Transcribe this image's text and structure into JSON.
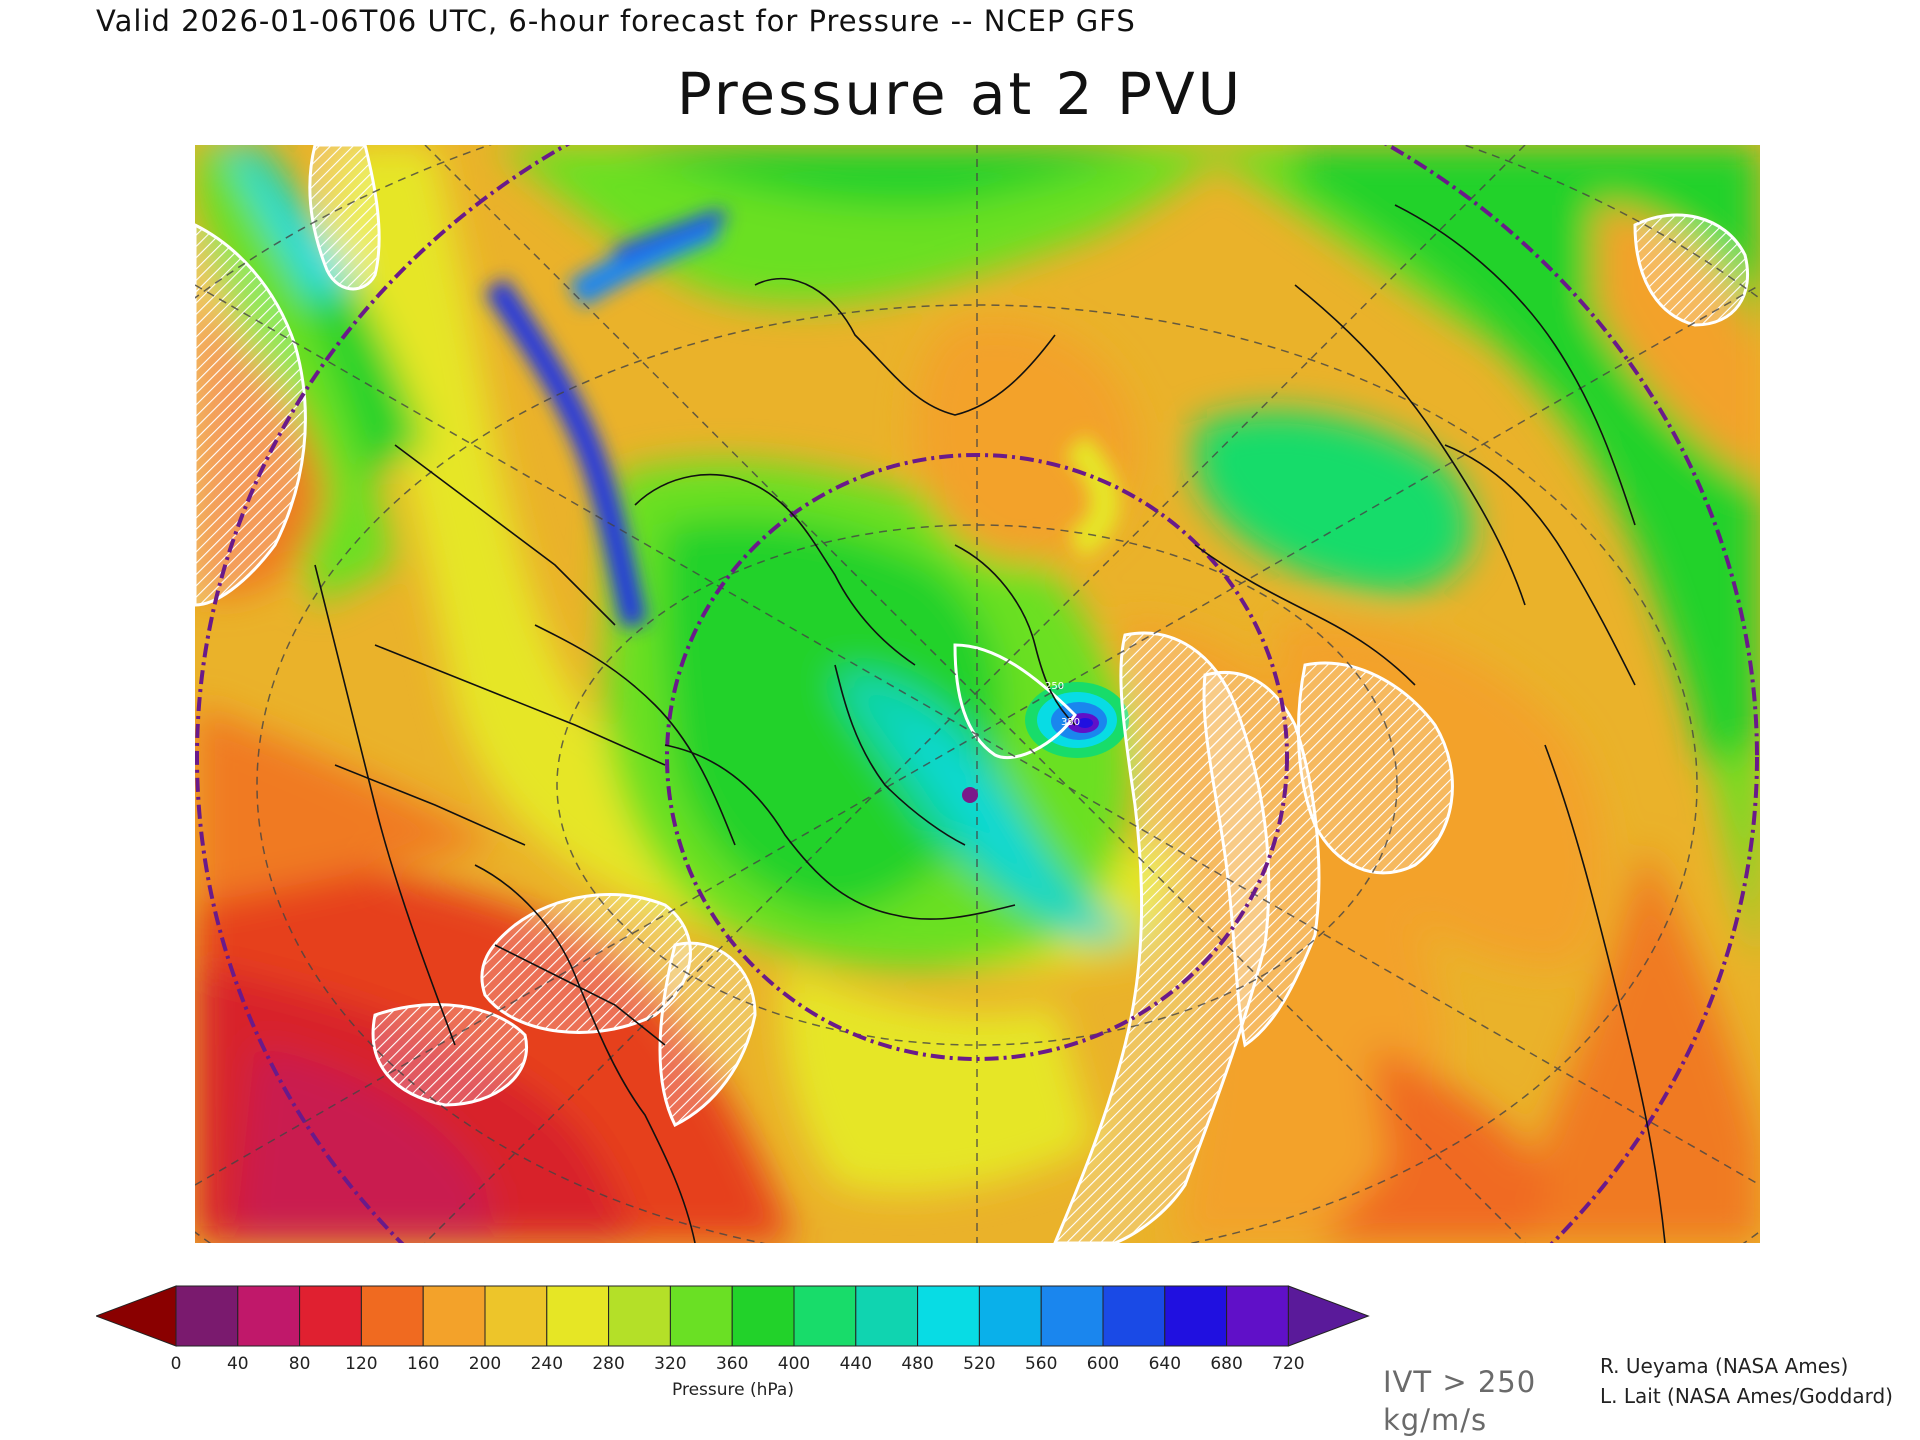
{
  "header": {
    "valid_line": "Valid 2026-01-06T06 UTC, 6-hour forecast for Pressure -- NCEP GFS",
    "title": "Pressure at 2 PVU"
  },
  "map": {
    "projection": "north polar stereographic",
    "field": "Pressure at 2 PVU",
    "overlay": "IVT > 250 kg/m/s (white hatched)",
    "features": [
      "coastlines",
      "state and province borders",
      "lat-lon dashed gridlines",
      "purple dash-dot circles",
      "low-pressure center off Greenland",
      "purple dot over Labrador"
    ],
    "contour_labels": [
      "250",
      "350"
    ]
  },
  "colorbar": {
    "ticks": [
      "0",
      "40",
      "80",
      "120",
      "160",
      "200",
      "240",
      "280",
      "320",
      "360",
      "400",
      "440",
      "480",
      "520",
      "560",
      "600",
      "640",
      "680",
      "720"
    ],
    "colors": [
      "#7a1a6e",
      "#c0186a",
      "#e02030",
      "#f06a20",
      "#f3a22a",
      "#edc52a",
      "#e6e625",
      "#b4e028",
      "#6ae024",
      "#22d22a",
      "#18dc6a",
      "#10d4b0",
      "#08dce4",
      "#0ab0ea",
      "#1a86ee",
      "#1a4ae6",
      "#2010e0",
      "#6010c8"
    ],
    "under_color": "#8a0000",
    "over_color": "#5a1a9a",
    "unit_label": "Pressure (hPa)"
  },
  "ivt_label": {
    "line1": "IVT > 250",
    "line2": "kg/m/s"
  },
  "credits": {
    "line1": "R. Ueyama (NASA Ames)",
    "line2": "L. Lait (NASA Ames/Goddard)"
  }
}
